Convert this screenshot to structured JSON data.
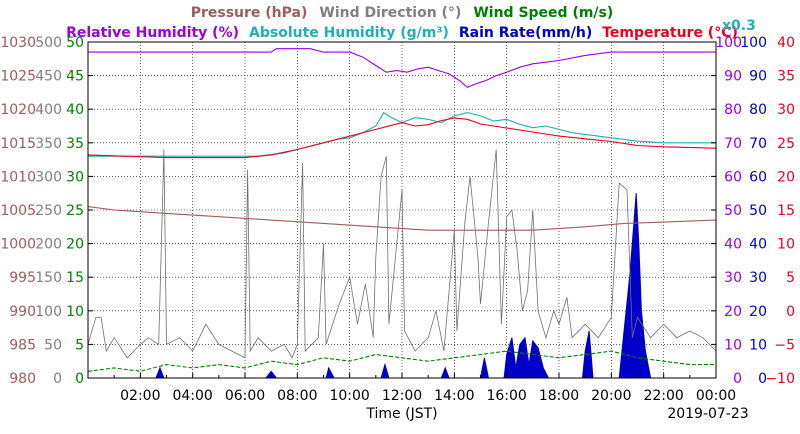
{
  "chart_data": {
    "type": "line",
    "xlabel": "Time (JST)",
    "date": "2019-07-23",
    "x_ticks": [
      "02:00",
      "04:00",
      "06:00",
      "08:00",
      "10:00",
      "12:00",
      "14:00",
      "16:00",
      "18:00",
      "20:00",
      "22:00",
      "00:00"
    ],
    "legend_row1": [
      {
        "text": "Pressure (hPa)",
        "color": "#a05c5c"
      },
      {
        "text": "Wind Direction (°)",
        "color": "#808080"
      },
      {
        "text": "Wind Speed (m/s)",
        "color": "#008000"
      }
    ],
    "legend_row2": [
      {
        "text": "Relative Humidity (%)",
        "color": "#9a00e0"
      },
      {
        "text": "Absolute Humidity (g/m³)",
        "color": "#20b0b0"
      },
      {
        "text": "Rain Rate(mm/h)",
        "color": "#0000c8"
      },
      {
        "text": "Temperature (°C)",
        "color": "#e8001e"
      }
    ],
    "abs_humidity_scale": "x0.3",
    "axes": {
      "pressure": {
        "color": "#a05c5c",
        "ticks": [
          "1030",
          "1025",
          "1020",
          "1015",
          "1010",
          "1005",
          "1000",
          "995",
          "990",
          "985",
          "980"
        ],
        "range": [
          980,
          1030
        ]
      },
      "wind_direction": {
        "color": "#808080",
        "ticks": [
          "500",
          "450",
          "400",
          "350",
          "300",
          "250",
          "200",
          "150",
          "100",
          "50",
          "0"
        ],
        "range": [
          0,
          500
        ]
      },
      "wind_speed": {
        "color": "#008000",
        "ticks": [
          "50",
          "45",
          "40",
          "35",
          "30",
          "25",
          "20",
          "15",
          "10",
          "5",
          "0"
        ],
        "range": [
          0,
          50
        ]
      },
      "humidity": {
        "color": "#9a00e0",
        "ticks": [
          "100",
          "90",
          "80",
          "70",
          "60",
          "50",
          "40",
          "30",
          "20",
          "10",
          "0"
        ],
        "range": [
          0,
          100
        ]
      },
      "rain_rate": {
        "color": "#0000c8",
        "ticks": [
          "100",
          "90",
          "80",
          "70",
          "60",
          "50",
          "40",
          "30",
          "20",
          "10",
          "0"
        ],
        "range": [
          0,
          100
        ]
      },
      "temperature": {
        "color": "#e8001e",
        "ticks": [
          "40",
          "35",
          "30",
          "25",
          "20",
          "15",
          "10",
          "5",
          "0",
          "−5",
          "−10"
        ],
        "range": [
          -10,
          40
        ]
      }
    },
    "series": [
      {
        "name": "Relative Humidity (%)",
        "color": "#9a00e0",
        "axis": "humidity",
        "points": [
          [
            0,
            97
          ],
          [
            7,
            97
          ],
          [
            7.2,
            98
          ],
          [
            8.5,
            98
          ],
          [
            9,
            97
          ],
          [
            10,
            97
          ],
          [
            10.5,
            95.5
          ],
          [
            11,
            93
          ],
          [
            11.4,
            91
          ],
          [
            11.8,
            91.5
          ],
          [
            12.2,
            91
          ],
          [
            12.6,
            92
          ],
          [
            13,
            92.5
          ],
          [
            13.4,
            91.5
          ],
          [
            13.8,
            90.5
          ],
          [
            14.2,
            88.5
          ],
          [
            14.5,
            86.5
          ],
          [
            14.8,
            87.5
          ],
          [
            15.2,
            88.5
          ],
          [
            15.6,
            90
          ],
          [
            16,
            91
          ],
          [
            16.5,
            92.5
          ],
          [
            17,
            93.5
          ],
          [
            17.5,
            94
          ],
          [
            18,
            94.5
          ],
          [
            19,
            96
          ],
          [
            20,
            97
          ],
          [
            24,
            97
          ]
        ]
      },
      {
        "name": "Absolute Humidity (g/m³)",
        "color": "#20b0b0",
        "axis": "humidity",
        "points": [
          [
            0,
            66
          ],
          [
            3,
            66
          ],
          [
            6.5,
            66
          ],
          [
            7.5,
            67
          ],
          [
            8,
            68
          ],
          [
            8.5,
            69
          ],
          [
            9,
            70
          ],
          [
            9.5,
            71
          ],
          [
            10,
            71.5
          ],
          [
            10.5,
            73
          ],
          [
            11,
            75
          ],
          [
            11.3,
            79
          ],
          [
            11.6,
            77.5
          ],
          [
            12,
            76
          ],
          [
            12.5,
            77.5
          ],
          [
            13,
            77
          ],
          [
            13.5,
            76
          ],
          [
            14,
            78
          ],
          [
            14.5,
            79
          ],
          [
            15,
            78
          ],
          [
            15.5,
            76.5
          ],
          [
            16,
            77
          ],
          [
            16.5,
            75.5
          ],
          [
            17,
            74.5
          ],
          [
            17.5,
            75
          ],
          [
            18,
            74
          ],
          [
            18.5,
            73
          ],
          [
            19,
            72.5
          ],
          [
            20,
            71.5
          ],
          [
            21,
            70.5
          ],
          [
            22,
            70
          ],
          [
            24,
            70
          ]
        ]
      },
      {
        "name": "Temperature (°C)",
        "color": "#e8001e",
        "axis": "temperature",
        "points": [
          [
            0,
            23.2
          ],
          [
            3,
            22.8
          ],
          [
            6,
            22.8
          ],
          [
            7,
            23.2
          ],
          [
            8,
            24
          ],
          [
            9,
            25
          ],
          [
            10,
            26
          ],
          [
            11,
            27
          ],
          [
            12,
            28
          ],
          [
            12.5,
            27.5
          ],
          [
            13,
            27.7
          ],
          [
            13.5,
            28.3
          ],
          [
            14,
            28.7
          ],
          [
            14.5,
            28.5
          ],
          [
            15,
            27.8
          ],
          [
            16,
            27.2
          ],
          [
            17,
            26.6
          ],
          [
            18,
            26
          ],
          [
            19,
            25.6
          ],
          [
            20,
            25.2
          ],
          [
            21,
            24.6
          ],
          [
            22,
            24.4
          ],
          [
            24,
            24.2
          ]
        ]
      },
      {
        "name": "Pressure (hPa)",
        "color": "#a05c5c",
        "axis": "pressure",
        "points": [
          [
            0,
            1005.5
          ],
          [
            1,
            1005
          ],
          [
            3,
            1004.5
          ],
          [
            5,
            1004
          ],
          [
            7,
            1003.5
          ],
          [
            9,
            1003
          ],
          [
            11,
            1002.5
          ],
          [
            13,
            1002
          ],
          [
            15,
            1002
          ],
          [
            17,
            1002
          ],
          [
            19,
            1002.5
          ],
          [
            20.5,
            1003
          ],
          [
            22,
            1003.2
          ],
          [
            24,
            1003.5
          ]
        ]
      },
      {
        "name": "Wind Direction (°)",
        "color": "#707070",
        "axis": "wind_direction",
        "points": [
          [
            0,
            50
          ],
          [
            0.3,
            90
          ],
          [
            0.5,
            90
          ],
          [
            0.7,
            40
          ],
          [
            1,
            60
          ],
          [
            1.5,
            30
          ],
          [
            2,
            50
          ],
          [
            2.3,
            60
          ],
          [
            2.7,
            50
          ],
          [
            2.9,
            340
          ],
          [
            3.0,
            50
          ],
          [
            3.5,
            60
          ],
          [
            4,
            40
          ],
          [
            4.5,
            80
          ],
          [
            5,
            50
          ],
          [
            5.5,
            40
          ],
          [
            6,
            30
          ],
          [
            6.1,
            310
          ],
          [
            6.2,
            40
          ],
          [
            6.5,
            60
          ],
          [
            7,
            40
          ],
          [
            7.5,
            50
          ],
          [
            7.8,
            30
          ],
          [
            8,
            50
          ],
          [
            8.2,
            320
          ],
          [
            8.3,
            40
          ],
          [
            8.8,
            60
          ],
          [
            9,
            200
          ],
          [
            9.1,
            50
          ],
          [
            9.6,
            110
          ],
          [
            10,
            150
          ],
          [
            10.3,
            80
          ],
          [
            10.6,
            140
          ],
          [
            10.9,
            60
          ],
          [
            11,
            180
          ],
          [
            11.2,
            300
          ],
          [
            11.4,
            330
          ],
          [
            11.5,
            80
          ],
          [
            12,
            280
          ],
          [
            12.1,
            70
          ],
          [
            12.5,
            40
          ],
          [
            13,
            60
          ],
          [
            13.3,
            100
          ],
          [
            13.6,
            40
          ],
          [
            14,
            220
          ],
          [
            14.1,
            70
          ],
          [
            14.4,
            230
          ],
          [
            14.6,
            300
          ],
          [
            14.9,
            180
          ],
          [
            15,
            110
          ],
          [
            15.3,
            230
          ],
          [
            15.6,
            340
          ],
          [
            15.8,
            80
          ],
          [
            16,
            240
          ],
          [
            16.2,
            250
          ],
          [
            16.4,
            190
          ],
          [
            16.6,
            100
          ],
          [
            16.8,
            130
          ],
          [
            17,
            250
          ],
          [
            17.2,
            100
          ],
          [
            17.5,
            60
          ],
          [
            17.8,
            100
          ],
          [
            18,
            80
          ],
          [
            18.3,
            120
          ],
          [
            18.5,
            60
          ],
          [
            19,
            80
          ],
          [
            19.5,
            60
          ],
          [
            20,
            90
          ],
          [
            20.3,
            290
          ],
          [
            20.6,
            280
          ],
          [
            20.8,
            60
          ],
          [
            21,
            90
          ],
          [
            21.5,
            60
          ],
          [
            22,
            80
          ],
          [
            22.5,
            60
          ],
          [
            23,
            70
          ],
          [
            23.5,
            60
          ],
          [
            24,
            40
          ]
        ]
      },
      {
        "name": "Wind Speed (m/s)",
        "color": "#008000",
        "axis": "wind_speed",
        "points": [
          [
            0,
            1
          ],
          [
            1,
            1.5
          ],
          [
            2,
            1
          ],
          [
            3,
            2
          ],
          [
            4,
            1.5
          ],
          [
            5,
            2
          ],
          [
            6,
            1.5
          ],
          [
            7,
            2.5
          ],
          [
            8,
            2
          ],
          [
            9,
            3
          ],
          [
            10,
            2.5
          ],
          [
            11,
            3.5
          ],
          [
            12,
            3
          ],
          [
            13,
            2.5
          ],
          [
            14,
            3
          ],
          [
            15,
            3.5
          ],
          [
            16,
            4
          ],
          [
            17,
            3.5
          ],
          [
            18,
            3
          ],
          [
            19,
            3.5
          ],
          [
            20,
            4
          ],
          [
            21,
            3
          ],
          [
            22,
            2.5
          ],
          [
            23,
            2
          ],
          [
            24,
            2
          ]
        ]
      },
      {
        "name": "Rain Rate(mm/h)",
        "color": "#0000c8",
        "axis": "rain_rate",
        "fill": true,
        "points": [
          [
            0,
            0
          ],
          [
            2.6,
            0
          ],
          [
            2.75,
            3
          ],
          [
            2.9,
            0
          ],
          [
            6.8,
            0
          ],
          [
            7,
            2
          ],
          [
            7.2,
            0
          ],
          [
            9.1,
            0
          ],
          [
            9.2,
            3
          ],
          [
            9.4,
            0
          ],
          [
            11.2,
            0
          ],
          [
            11.35,
            4
          ],
          [
            11.5,
            0
          ],
          [
            13.5,
            0
          ],
          [
            13.65,
            3
          ],
          [
            13.8,
            0
          ],
          [
            15.0,
            0
          ],
          [
            15.15,
            6
          ],
          [
            15.3,
            0
          ],
          [
            15.9,
            0
          ],
          [
            16.0,
            7
          ],
          [
            16.2,
            12
          ],
          [
            16.35,
            3
          ],
          [
            16.5,
            10
          ],
          [
            16.7,
            12
          ],
          [
            16.85,
            4
          ],
          [
            17.0,
            11
          ],
          [
            17.2,
            9
          ],
          [
            17.4,
            3
          ],
          [
            17.6,
            0
          ],
          [
            18.9,
            0
          ],
          [
            19.0,
            8
          ],
          [
            19.15,
            14
          ],
          [
            19.3,
            0
          ],
          [
            20.3,
            0
          ],
          [
            20.5,
            15
          ],
          [
            20.7,
            30
          ],
          [
            20.85,
            45
          ],
          [
            20.95,
            55
          ],
          [
            21.05,
            40
          ],
          [
            21.15,
            20
          ],
          [
            21.3,
            8
          ],
          [
            21.5,
            0
          ],
          [
            24,
            0
          ]
        ]
      }
    ]
  }
}
